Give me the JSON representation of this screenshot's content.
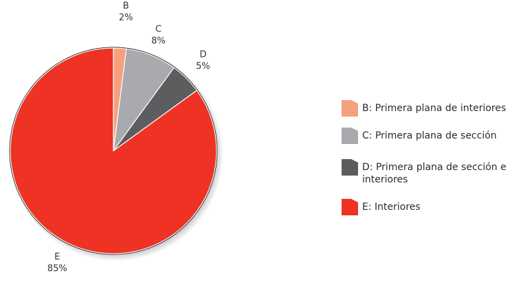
{
  "chart_data": {
    "type": "pie",
    "slices": [
      {
        "key": "B",
        "percent_label": "2%",
        "value": 2,
        "color": "#f5a07e",
        "legend": "B: Primera plana de interiores"
      },
      {
        "key": "C",
        "percent_label": "8%",
        "value": 8,
        "color": "#a9aaad",
        "legend": "C: Primera plana de sección"
      },
      {
        "key": "D",
        "percent_label": "5%",
        "value": 5,
        "color": "#5d5d5f",
        "legend": "D: Primera plana de sección e interiores"
      },
      {
        "key": "E",
        "percent_label": "85%",
        "value": 85,
        "color": "#ee3224",
        "legend": "E: Interiores"
      }
    ],
    "start": "12 o'clock",
    "direction": "clockwise",
    "outline_color": "#222222",
    "legend_position": "right"
  }
}
